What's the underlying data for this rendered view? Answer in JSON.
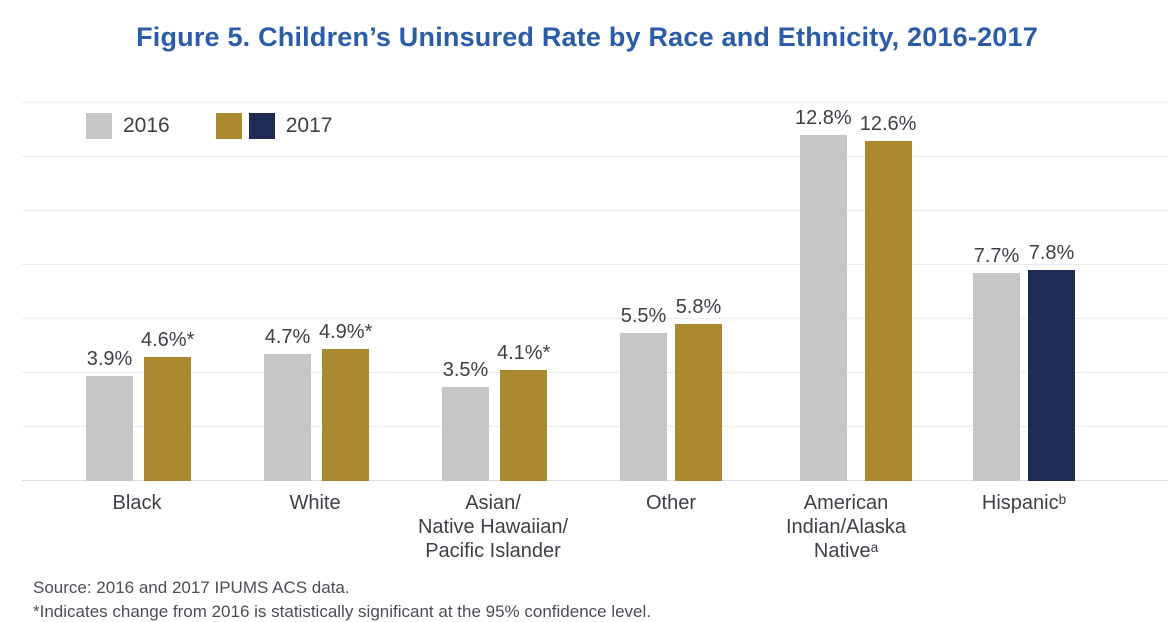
{
  "page": {
    "title": "Figure 5. Children’s Uninsured Rate by Race and Ethnicity, 2016-2017"
  },
  "colors": {
    "title_blue": "#2B5CA9",
    "bar_gray_2016": "#C5C6C8",
    "bar_gold_2017": "#AB8A2F",
    "bar_navy_2017": "#1F2B55",
    "gridline": "#ECECED",
    "label_text": "#3D4147"
  },
  "legend": {
    "items": [
      {
        "label": "2016",
        "colors": [
          "#C5C6C8"
        ]
      },
      {
        "label": "2017",
        "colors": [
          "#AB8A2F",
          "#1F2B55"
        ]
      }
    ]
  },
  "chart_data": {
    "type": "bar",
    "title": "Figure 5. Children’s Uninsured Rate by Race and Ethnicity, 2016-2017",
    "categories": [
      "Black",
      "White",
      "Asian/Native Hawaiian/Pacific Islander",
      "Other",
      "American Indian/Alaska Native",
      "Hispanic"
    ],
    "category_display": [
      "Black",
      "White",
      "Asian/\nNative Hawaiian/\nPacific Islander",
      "Other",
      "American\nIndian/Alaska\nNativeᵃ",
      "Hispanicᵇ"
    ],
    "series": [
      {
        "name": "2016",
        "values": [
          3.9,
          4.7,
          3.5,
          5.5,
          12.8,
          7.7
        ]
      },
      {
        "name": "2017",
        "values": [
          4.6,
          4.9,
          4.1,
          5.8,
          12.6,
          7.8
        ]
      }
    ],
    "labels_2016": [
      "3.9%",
      "4.7%",
      "3.5%",
      "5.5%",
      "12.8%",
      "7.7%"
    ],
    "labels_2017": [
      "4.6%*",
      "4.9%*",
      "4.1%*",
      "5.8%",
      "12.6%",
      "7.8%"
    ],
    "color_2017": [
      "#AB8A2F",
      "#AB8A2F",
      "#AB8A2F",
      "#AB8A2F",
      "#AB8A2F",
      "#1F2B55"
    ],
    "xlabel": "",
    "ylabel": "",
    "ylim": [
      0,
      14
    ],
    "gridline_values": [
      0,
      2,
      4,
      6,
      8,
      10,
      12,
      14
    ],
    "grid": true,
    "y_axis_labels_visible": false,
    "legend_position": "top-left",
    "asterisk_meaning_visible": false
  },
  "footer": {
    "source": "Source: 2016 and 2017 IPUMS ACS data.",
    "footnote_partial": "*Indicates change from 2016 is statistically significant at the 95% confidence level."
  }
}
